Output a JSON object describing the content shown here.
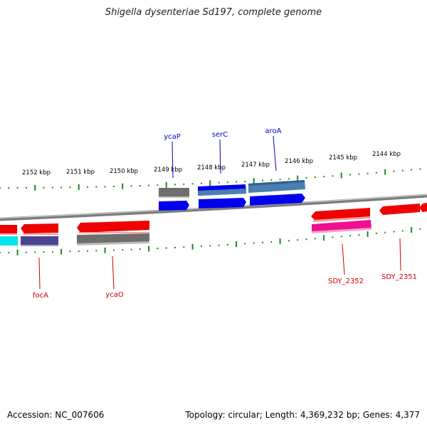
{
  "title": "Shigella dysenteriae Sd197, complete genome",
  "footer": {
    "accession": "Accession: NC_007606",
    "summary": "Topology: circular; Length: 4,369,232 bp; Genes: 4,377"
  },
  "colors": {
    "backbone": "#8c8c8c",
    "tick": "#1a8a1a",
    "top_label": "#0000cc",
    "bottom_label": "#cc0000",
    "red": "#ee0000",
    "blue": "#0000ee",
    "steel": "#4a7fb0",
    "gray": "#6e6e6e",
    "cyan": "#00e5ee",
    "slate": "#4b4590",
    "magenta": "#ee1090"
  },
  "scale_labels": [
    "2152 kbp",
    "2151 kbp",
    "2150 kbp",
    "2149 kbp",
    "2148 kbp",
    "2147 kbp",
    "2146 kbp",
    "2145 kbp",
    "2144 kbp"
  ],
  "gene_labels": {
    "top": [
      "ycaP",
      "serC",
      "aroA"
    ],
    "bottom": [
      "focA",
      "ycaO",
      "SDY_2352",
      "SDY_2351"
    ]
  }
}
